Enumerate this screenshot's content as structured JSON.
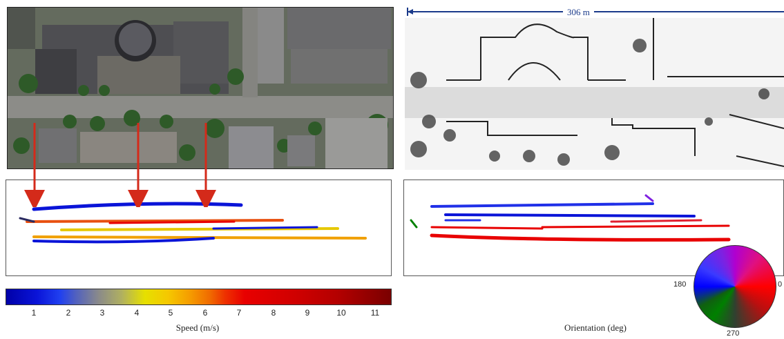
{
  "scale_bar": {
    "label": "306 m"
  },
  "speed_colorbar": {
    "title": "Speed (m/s)",
    "ticks": [
      "1",
      "2",
      "3",
      "4",
      "5",
      "6",
      "7",
      "8",
      "9",
      "10",
      "11"
    ]
  },
  "orientation_wheel": {
    "title": "Orientation (deg)",
    "labels": {
      "left": "180",
      "right": "0",
      "bottom": "270"
    }
  },
  "colors": {
    "arrow": "#d42a1a",
    "scale_bar": "#1a3a8a",
    "speed_slow": "#0a14d8",
    "speed_fast": "#e80000"
  }
}
